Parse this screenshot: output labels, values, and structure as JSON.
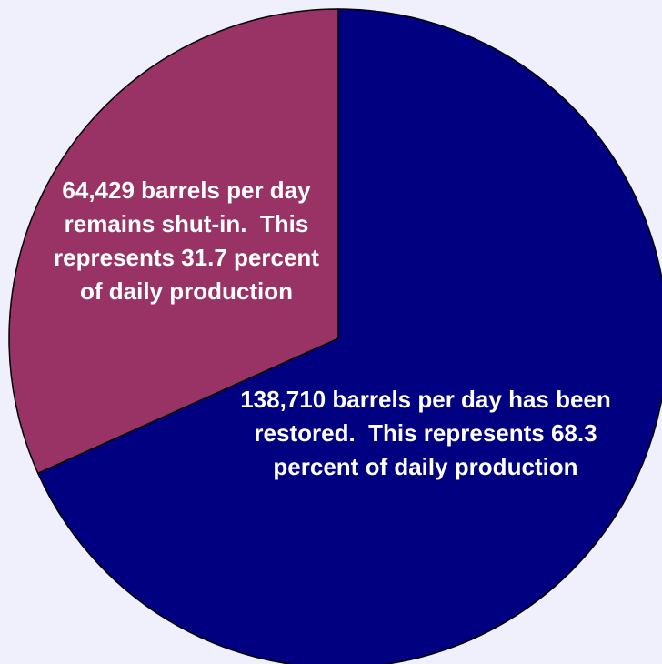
{
  "chart_data": {
    "type": "pie",
    "values": [
      138710,
      64429
    ],
    "value_labels": [
      "138,710 barrels per day has been restored.  This represents 68.3 percent of daily production",
      "64,429 barrels per day remains shut-in.  This represents 31.7 percent of daily production"
    ],
    "colors": [
      "#000080",
      "#993366"
    ]
  }
}
